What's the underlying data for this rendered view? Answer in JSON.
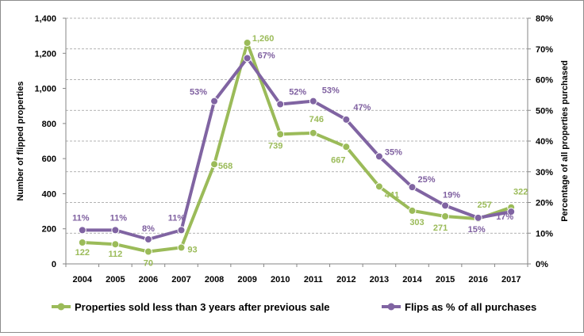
{
  "chart_data": {
    "type": "line",
    "categories": [
      "2004",
      "2005",
      "2006",
      "2007",
      "2008",
      "2009",
      "2010",
      "2011",
      "2012",
      "2013",
      "2014",
      "2015",
      "2016",
      "2017"
    ],
    "xlabel": "",
    "ylabel": "Number of flipped properties",
    "y2label": "Percentage of all properties purchased",
    "ylim": [
      0,
      1400
    ],
    "y2lim": [
      0,
      80
    ],
    "yticks": [
      "0",
      "200",
      "400",
      "600",
      "800",
      "1,000",
      "1,200",
      "1,400"
    ],
    "y2ticks": [
      "0%",
      "10%",
      "20%",
      "30%",
      "40%",
      "50%",
      "60%",
      "70%",
      "80%"
    ],
    "grid": true,
    "legend_position": "bottom",
    "colors": {
      "green": "#9bbb59",
      "purple": "#8064a2",
      "green_label": "#9bbb59",
      "purple_label": "#7f60a0"
    },
    "series": [
      {
        "name": "Properties sold less than 3 years after previous sale",
        "axis": "left",
        "values": [
          122,
          112,
          70,
          93,
          568,
          1260,
          739,
          746,
          667,
          441,
          303,
          271,
          257,
          322
        ],
        "labels": [
          "122",
          "112",
          "70",
          "93",
          "568",
          "1,260",
          "739",
          "746",
          "667",
          "441",
          "303",
          "271",
          "257",
          "322"
        ]
      },
      {
        "name": "Flips as % of all purchases",
        "axis": "right",
        "values": [
          11,
          11,
          8,
          11,
          53,
          67,
          52,
          53,
          47,
          35,
          25,
          19,
          15,
          17
        ],
        "labels": [
          "11%",
          "11%",
          "8%",
          "11%",
          "53%",
          "67%",
          "52%",
          "53%",
          "47%",
          "35%",
          "25%",
          "19%",
          "15%",
          "17%"
        ]
      }
    ]
  }
}
